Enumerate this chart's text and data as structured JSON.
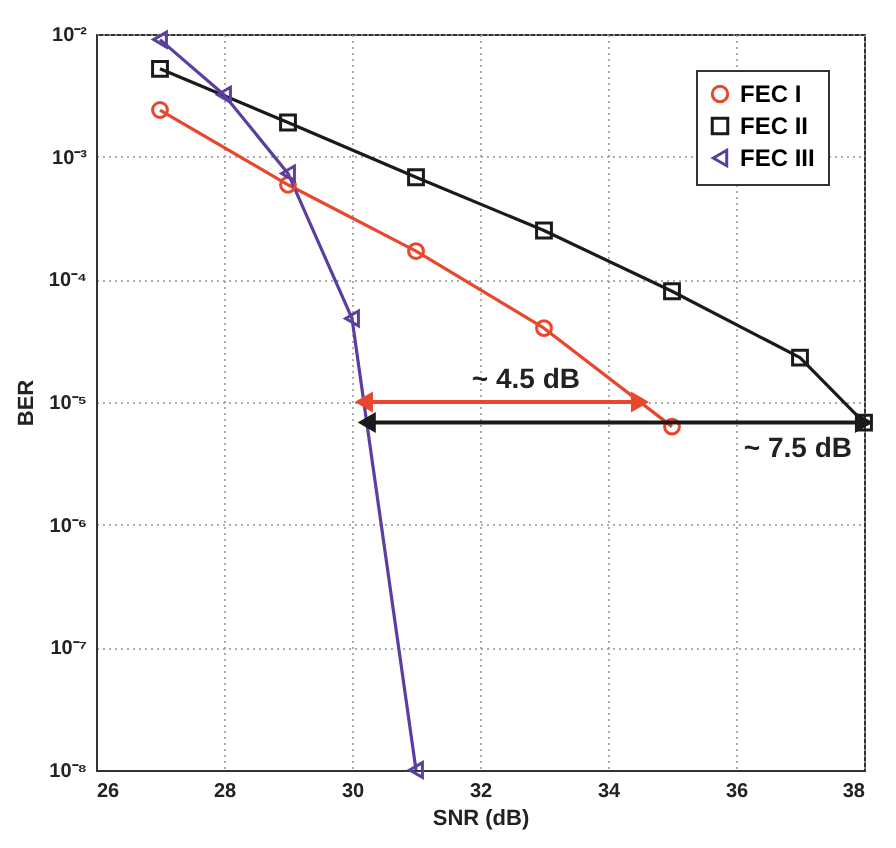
{
  "chart_data": {
    "type": "line",
    "xlabel": "SNR (dB)",
    "ylabel": "BER",
    "xlim": [
      26,
      38
    ],
    "xticks": [
      26,
      28,
      30,
      32,
      34,
      36,
      38
    ],
    "ylim": [
      1e-08,
      0.01
    ],
    "yticks": [
      {
        "value": 1e-08,
        "label": "10⁻⁸"
      },
      {
        "value": 1e-07,
        "label": "10⁻⁷"
      },
      {
        "value": 1e-06,
        "label": "10⁻⁶"
      },
      {
        "value": 1e-05,
        "label": "10⁻⁵"
      },
      {
        "value": 0.0001,
        "label": "10⁻⁴"
      },
      {
        "value": 0.001,
        "label": "10⁻³"
      },
      {
        "value": 0.01,
        "label": "10⁻²"
      }
    ],
    "log": "y",
    "grid": true,
    "legend": "top right",
    "line_style": "solid",
    "series": [
      {
        "name": "FEC I",
        "color": "#e8472e",
        "marker": "circle",
        "x": [
          27,
          29,
          31,
          33,
          35
        ],
        "values": [
          0.0024,
          0.00059,
          0.00017,
          4e-05,
          6.3e-06
        ]
      },
      {
        "name": "FEC II",
        "color": "#1a1a1a",
        "marker": "square",
        "x": [
          27,
          29,
          31,
          33,
          35,
          37,
          38
        ],
        "values": [
          0.0052,
          0.0019,
          0.00068,
          0.00025,
          8e-05,
          2.3e-05,
          6.8e-06
        ]
      },
      {
        "name": "FEC III",
        "color": "#5a3fa0",
        "marker": "triangle",
        "x": [
          27,
          28,
          29,
          30,
          31
        ],
        "values": [
          0.009,
          0.0032,
          0.00073,
          4.8e-05,
          1e-08
        ]
      }
    ],
    "annotations": [
      {
        "text": "~ 4.5 dB",
        "x": 34.5,
        "y": 1e-05
      },
      {
        "text": "~ 7.5 dB",
        "x": 38,
        "y": 6.8e-06
      }
    ]
  }
}
